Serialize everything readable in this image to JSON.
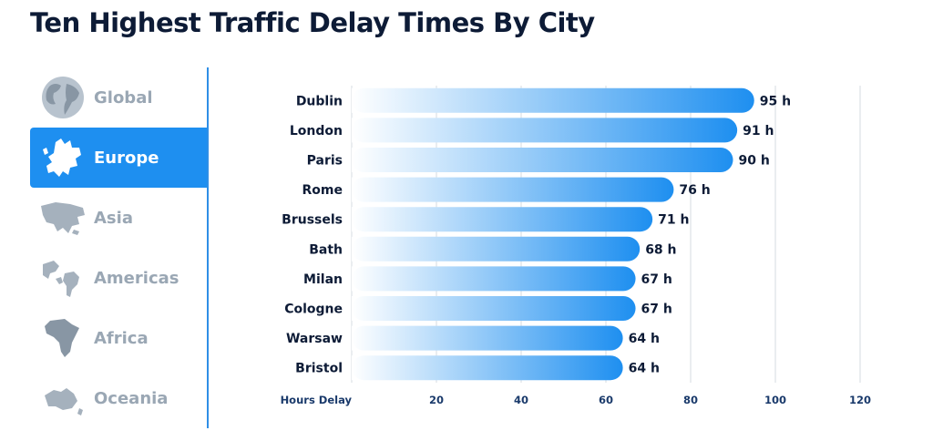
{
  "title": "Ten Highest Traffic Delay Times By City",
  "tabs": [
    {
      "label": "Global",
      "icon": "globe-icon",
      "active": false
    },
    {
      "label": "Europe",
      "icon": "europe-map-icon",
      "active": true
    },
    {
      "label": "Asia",
      "icon": "asia-map-icon",
      "active": false
    },
    {
      "label": "Americas",
      "icon": "americas-map-icon",
      "active": false
    },
    {
      "label": "Africa",
      "icon": "africa-map-icon",
      "active": false
    },
    {
      "label": "Oceania",
      "icon": "oceania-map-icon",
      "active": false
    }
  ],
  "colors": {
    "accent": "#1e8ff0",
    "bar_end": "#1e8ff0",
    "bar_start": "#ffffff",
    "inactive_text": "#9aa7b4",
    "axis_text": "#1a3a6b"
  },
  "chart_data": {
    "type": "bar",
    "orientation": "horizontal",
    "categories": [
      "Dublin",
      "London",
      "Paris",
      "Rome",
      "Brussels",
      "Bath",
      "Milan",
      "Cologne",
      "Warsaw",
      "Bristol"
    ],
    "values": [
      95,
      91,
      90,
      76,
      71,
      68,
      67,
      67,
      64,
      64
    ],
    "value_suffix": " h",
    "xlabel": "Hours Delay",
    "xlim": [
      0,
      120
    ],
    "xticks": [
      20,
      40,
      60,
      80,
      100,
      120
    ],
    "grid": true
  }
}
